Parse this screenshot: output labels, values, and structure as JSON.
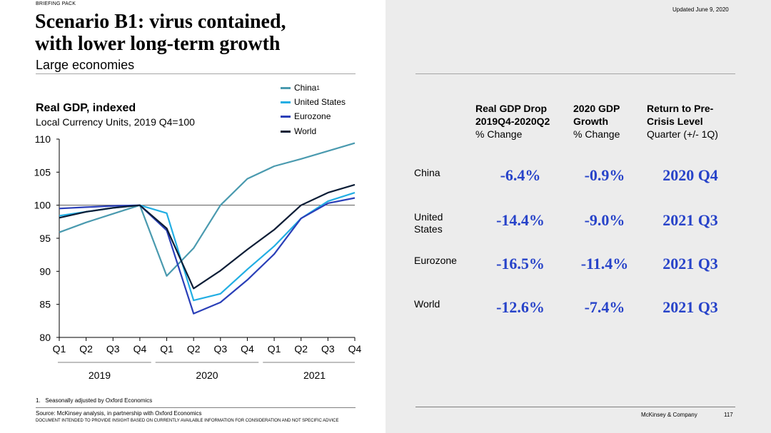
{
  "header": {
    "kicker": "BRIEFING PACK",
    "title_line1": "Scenario B1: virus contained,",
    "title_line2": "with lower long-term growth",
    "subtitle": "Large economies",
    "updated": "Updated June 9, 2020"
  },
  "chart_data": {
    "type": "line",
    "title": "Real GDP, indexed",
    "subtitle": "Local Currency Units, 2019 Q4=100",
    "ylim": [
      80,
      110
    ],
    "yticks": [
      80,
      85,
      90,
      95,
      100,
      105,
      110
    ],
    "categories": [
      "Q1",
      "Q2",
      "Q3",
      "Q4",
      "Q1",
      "Q2",
      "Q3",
      "Q4",
      "Q1",
      "Q2",
      "Q3",
      "Q4"
    ],
    "years": [
      "2019",
      "2020",
      "2021"
    ],
    "reference_line": 100,
    "grid": false,
    "legend_position": "top-right",
    "series": [
      {
        "name": "China",
        "superscript": "1",
        "color": "#4a9aaf",
        "values": [
          95.9,
          97.4,
          98.7,
          100.0,
          89.3,
          93.5,
          100.0,
          104.0,
          105.9,
          107.0,
          108.2,
          109.4
        ]
      },
      {
        "name": "United States",
        "color": "#22aee3",
        "values": [
          98.4,
          99.0,
          99.6,
          100.0,
          98.8,
          85.6,
          86.6,
          90.3,
          93.8,
          98.0,
          100.6,
          101.9
        ]
      },
      {
        "name": "Eurozone",
        "color": "#2a3fb8",
        "values": [
          99.5,
          99.7,
          99.9,
          100.0,
          96.2,
          83.6,
          85.3,
          88.7,
          92.6,
          98.0,
          100.3,
          101.1
        ]
      },
      {
        "name": "World",
        "color": "#0b1d36",
        "values": [
          98.1,
          99.0,
          99.6,
          100.0,
          96.5,
          87.4,
          90.1,
          93.3,
          96.3,
          100.0,
          101.9,
          103.1
        ]
      }
    ]
  },
  "footnote": "1.   Seasonally adjusted by Oxford Economics",
  "source": "Source: McKinsey analysis, in partnership with Oxford Economics",
  "disclaimer": "DOCUMENT INTENDED TO PROVIDE INSIGHT BASED ON CURRENTLY AVAILABLE INFORMATION FOR CONSIDERATION AND NOT SPECIFIC ADVICE",
  "table": {
    "columns": [
      {
        "line1": "Real GDP Drop",
        "line2": "2019Q4-2020Q2",
        "line3": "% Change"
      },
      {
        "line1": "2020 GDP",
        "line2": "Growth",
        "line3": "% Change"
      },
      {
        "line1": "Return to Pre-",
        "line2": "Crisis Level",
        "line3": "Quarter (+/- 1Q)"
      }
    ],
    "rows": [
      {
        "label": "China",
        "drop": "-6.4%",
        "growth": "-0.9%",
        "return": "2020 Q4"
      },
      {
        "label": "United States",
        "drop": "-14.4%",
        "growth": "-9.0%",
        "return": "2021 Q3"
      },
      {
        "label": "Eurozone",
        "drop": "-16.5%",
        "growth": "-11.4%",
        "return": "2021 Q3"
      },
      {
        "label": "World",
        "drop": "-12.6%",
        "growth": "-7.4%",
        "return": "2021 Q3"
      }
    ]
  },
  "footer": {
    "brand": "McKinsey & Company",
    "page": "117"
  }
}
